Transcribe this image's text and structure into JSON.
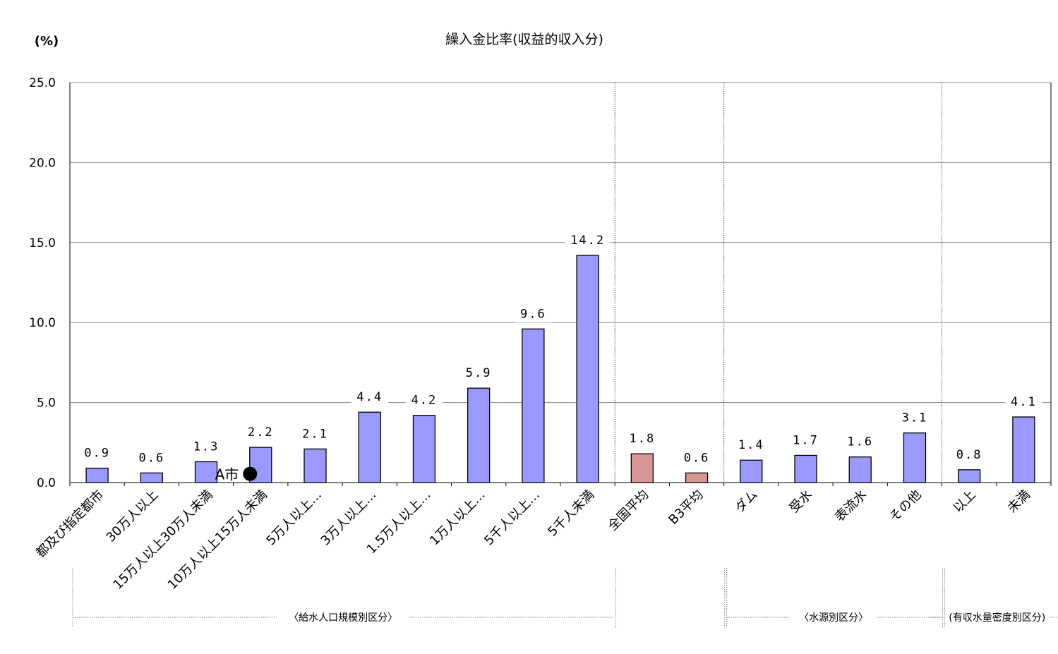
{
  "chart_data": {
    "type": "bar",
    "title": "繰入金比率(収益的収入分)",
    "y_unit_label": "(%)",
    "ylim": [
      0,
      25
    ],
    "yticks": [
      "0.0",
      "5.0",
      "10.0",
      "15.0",
      "20.0",
      "25.0"
    ],
    "grid": true,
    "categories": [
      "都及び指定都市",
      "30万人以上",
      "15万人以上30万人未満",
      "10万人以上15万人未満",
      "5万人以上…",
      "3万人以上…",
      "1.5万人以上…",
      "1万人以上…",
      "5千人以上…",
      "5千人未満",
      "全国平均",
      "B3平均",
      "ダム",
      "受水",
      "表流水",
      "その他",
      "以上",
      "未満"
    ],
    "values": [
      0.9,
      0.6,
      1.3,
      2.2,
      2.1,
      4.4,
      4.2,
      5.9,
      9.6,
      14.2,
      1.8,
      0.6,
      1.4,
      1.7,
      1.6,
      3.1,
      0.8,
      4.1
    ],
    "value_labels": [
      "0.9",
      "0.6",
      "1.3",
      "2.2",
      "2.1",
      "4.4",
      "4.2",
      "5.9",
      "9.6",
      "14.2",
      "1.8",
      "0.6",
      "1.4",
      "1.7",
      "1.6",
      "3.1",
      "0.8",
      "4.1"
    ],
    "bar_colors": [
      "#9999ff",
      "#9999ff",
      "#9999ff",
      "#9999ff",
      "#9999ff",
      "#9999ff",
      "#9999ff",
      "#9999ff",
      "#9999ff",
      "#9999ff",
      "#d99594",
      "#d99594",
      "#9999ff",
      "#9999ff",
      "#9999ff",
      "#9999ff",
      "#9999ff",
      "#9999ff"
    ],
    "groups": [
      {
        "label": "〈給水人口規模別区分〉",
        "from": 0,
        "to": 9
      },
      {
        "label": "〈水源別区分〉",
        "from": 12,
        "to": 15
      },
      {
        "label": "(有収水量密度別区分)",
        "from": 16,
        "to": 17
      }
    ],
    "marker": {
      "label": "A市",
      "category_index": 3,
      "value": 0.5
    }
  }
}
